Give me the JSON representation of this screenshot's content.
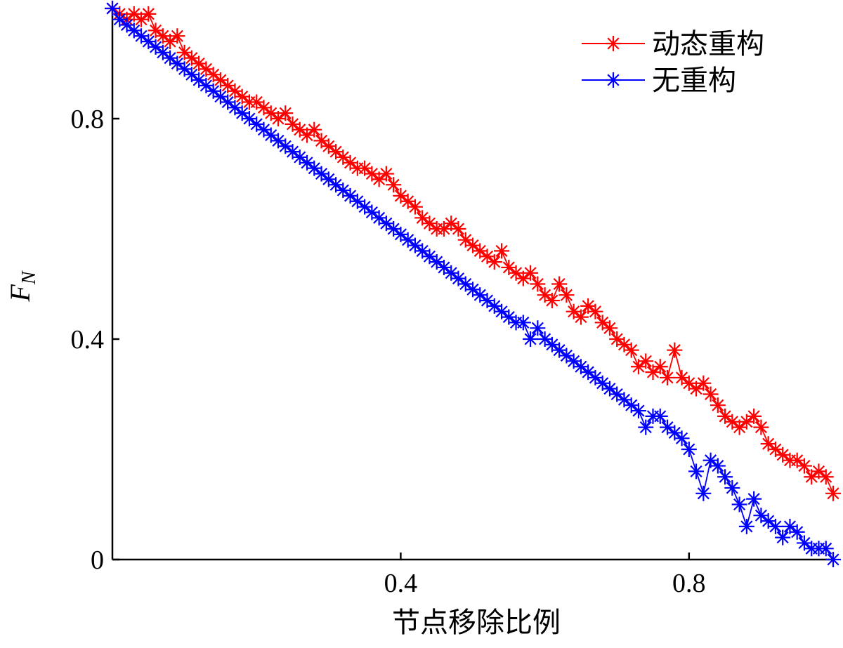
{
  "chart_data": {
    "type": "line",
    "xlabel": "节点移除比例",
    "ylabel": "F",
    "ylabel_subscript": "N",
    "xlim": [
      0,
      1.0
    ],
    "ylim": [
      0,
      1.0
    ],
    "xticks": [
      0.4,
      0.8
    ],
    "xtick_labels": [
      "0.4",
      "0.8"
    ],
    "yticks": [
      0,
      0.4,
      0.8
    ],
    "ytick_labels": [
      "0",
      "0.4",
      "0.8"
    ],
    "grid": false,
    "legend_position": "top-right",
    "series": [
      {
        "name": "动态重构",
        "color": "#ff0000",
        "marker": "asterisk",
        "x": [
          0.0,
          0.01,
          0.02,
          0.03,
          0.04,
          0.05,
          0.06,
          0.07,
          0.08,
          0.09,
          0.1,
          0.11,
          0.12,
          0.13,
          0.14,
          0.15,
          0.16,
          0.17,
          0.18,
          0.19,
          0.2,
          0.21,
          0.22,
          0.23,
          0.24,
          0.25,
          0.26,
          0.27,
          0.28,
          0.29,
          0.3,
          0.31,
          0.32,
          0.33,
          0.34,
          0.35,
          0.36,
          0.37,
          0.38,
          0.39,
          0.4,
          0.41,
          0.42,
          0.43,
          0.44,
          0.45,
          0.46,
          0.47,
          0.48,
          0.49,
          0.5,
          0.51,
          0.52,
          0.53,
          0.54,
          0.55,
          0.56,
          0.57,
          0.58,
          0.59,
          0.6,
          0.61,
          0.62,
          0.63,
          0.64,
          0.65,
          0.66,
          0.67,
          0.68,
          0.69,
          0.7,
          0.71,
          0.72,
          0.73,
          0.74,
          0.75,
          0.76,
          0.77,
          0.78,
          0.79,
          0.8,
          0.81,
          0.82,
          0.83,
          0.84,
          0.85,
          0.86,
          0.87,
          0.88,
          0.89,
          0.9,
          0.91,
          0.92,
          0.93,
          0.94,
          0.95,
          0.96,
          0.97,
          0.98,
          0.99,
          1.0
        ],
        "y": [
          1.0,
          0.99,
          0.98,
          0.99,
          0.98,
          0.99,
          0.96,
          0.95,
          0.94,
          0.95,
          0.92,
          0.91,
          0.9,
          0.89,
          0.88,
          0.87,
          0.86,
          0.85,
          0.84,
          0.83,
          0.83,
          0.82,
          0.81,
          0.8,
          0.81,
          0.79,
          0.78,
          0.77,
          0.78,
          0.76,
          0.75,
          0.74,
          0.73,
          0.72,
          0.71,
          0.71,
          0.7,
          0.69,
          0.7,
          0.68,
          0.66,
          0.65,
          0.64,
          0.62,
          0.61,
          0.6,
          0.6,
          0.61,
          0.6,
          0.58,
          0.57,
          0.56,
          0.55,
          0.54,
          0.56,
          0.53,
          0.52,
          0.51,
          0.52,
          0.5,
          0.48,
          0.47,
          0.5,
          0.48,
          0.45,
          0.44,
          0.46,
          0.45,
          0.43,
          0.42,
          0.4,
          0.39,
          0.38,
          0.35,
          0.36,
          0.34,
          0.35,
          0.33,
          0.38,
          0.33,
          0.32,
          0.31,
          0.32,
          0.3,
          0.28,
          0.26,
          0.25,
          0.24,
          0.25,
          0.26,
          0.24,
          0.21,
          0.2,
          0.19,
          0.18,
          0.18,
          0.17,
          0.15,
          0.16,
          0.15,
          0.12
        ]
      },
      {
        "name": "无重构",
        "color": "#0000ff",
        "marker": "asterisk",
        "x": [
          0.0,
          0.01,
          0.02,
          0.03,
          0.04,
          0.05,
          0.06,
          0.07,
          0.08,
          0.09,
          0.1,
          0.11,
          0.12,
          0.13,
          0.14,
          0.15,
          0.16,
          0.17,
          0.18,
          0.19,
          0.2,
          0.21,
          0.22,
          0.23,
          0.24,
          0.25,
          0.26,
          0.27,
          0.28,
          0.29,
          0.3,
          0.31,
          0.32,
          0.33,
          0.34,
          0.35,
          0.36,
          0.37,
          0.38,
          0.39,
          0.4,
          0.41,
          0.42,
          0.43,
          0.44,
          0.45,
          0.46,
          0.47,
          0.48,
          0.49,
          0.5,
          0.51,
          0.52,
          0.53,
          0.54,
          0.55,
          0.56,
          0.57,
          0.58,
          0.59,
          0.6,
          0.61,
          0.62,
          0.63,
          0.64,
          0.65,
          0.66,
          0.67,
          0.68,
          0.69,
          0.7,
          0.71,
          0.72,
          0.73,
          0.74,
          0.75,
          0.76,
          0.77,
          0.78,
          0.79,
          0.8,
          0.81,
          0.82,
          0.83,
          0.84,
          0.85,
          0.86,
          0.87,
          0.88,
          0.89,
          0.9,
          0.91,
          0.92,
          0.93,
          0.94,
          0.95,
          0.96,
          0.97,
          0.98,
          0.99,
          1.0
        ],
        "y": [
          1.0,
          0.98,
          0.97,
          0.96,
          0.95,
          0.94,
          0.93,
          0.92,
          0.91,
          0.9,
          0.89,
          0.88,
          0.87,
          0.86,
          0.85,
          0.84,
          0.83,
          0.82,
          0.81,
          0.8,
          0.79,
          0.78,
          0.77,
          0.76,
          0.75,
          0.74,
          0.73,
          0.72,
          0.71,
          0.7,
          0.69,
          0.68,
          0.67,
          0.66,
          0.65,
          0.64,
          0.63,
          0.62,
          0.61,
          0.6,
          0.59,
          0.58,
          0.57,
          0.56,
          0.55,
          0.54,
          0.53,
          0.52,
          0.51,
          0.5,
          0.49,
          0.48,
          0.47,
          0.46,
          0.45,
          0.44,
          0.43,
          0.43,
          0.4,
          0.42,
          0.4,
          0.39,
          0.38,
          0.37,
          0.36,
          0.35,
          0.34,
          0.33,
          0.32,
          0.31,
          0.3,
          0.29,
          0.28,
          0.27,
          0.24,
          0.26,
          0.26,
          0.24,
          0.23,
          0.22,
          0.2,
          0.16,
          0.12,
          0.18,
          0.17,
          0.15,
          0.13,
          0.1,
          0.06,
          0.11,
          0.08,
          0.07,
          0.06,
          0.04,
          0.06,
          0.05,
          0.03,
          0.02,
          0.02,
          0.02,
          0.0
        ]
      }
    ]
  }
}
